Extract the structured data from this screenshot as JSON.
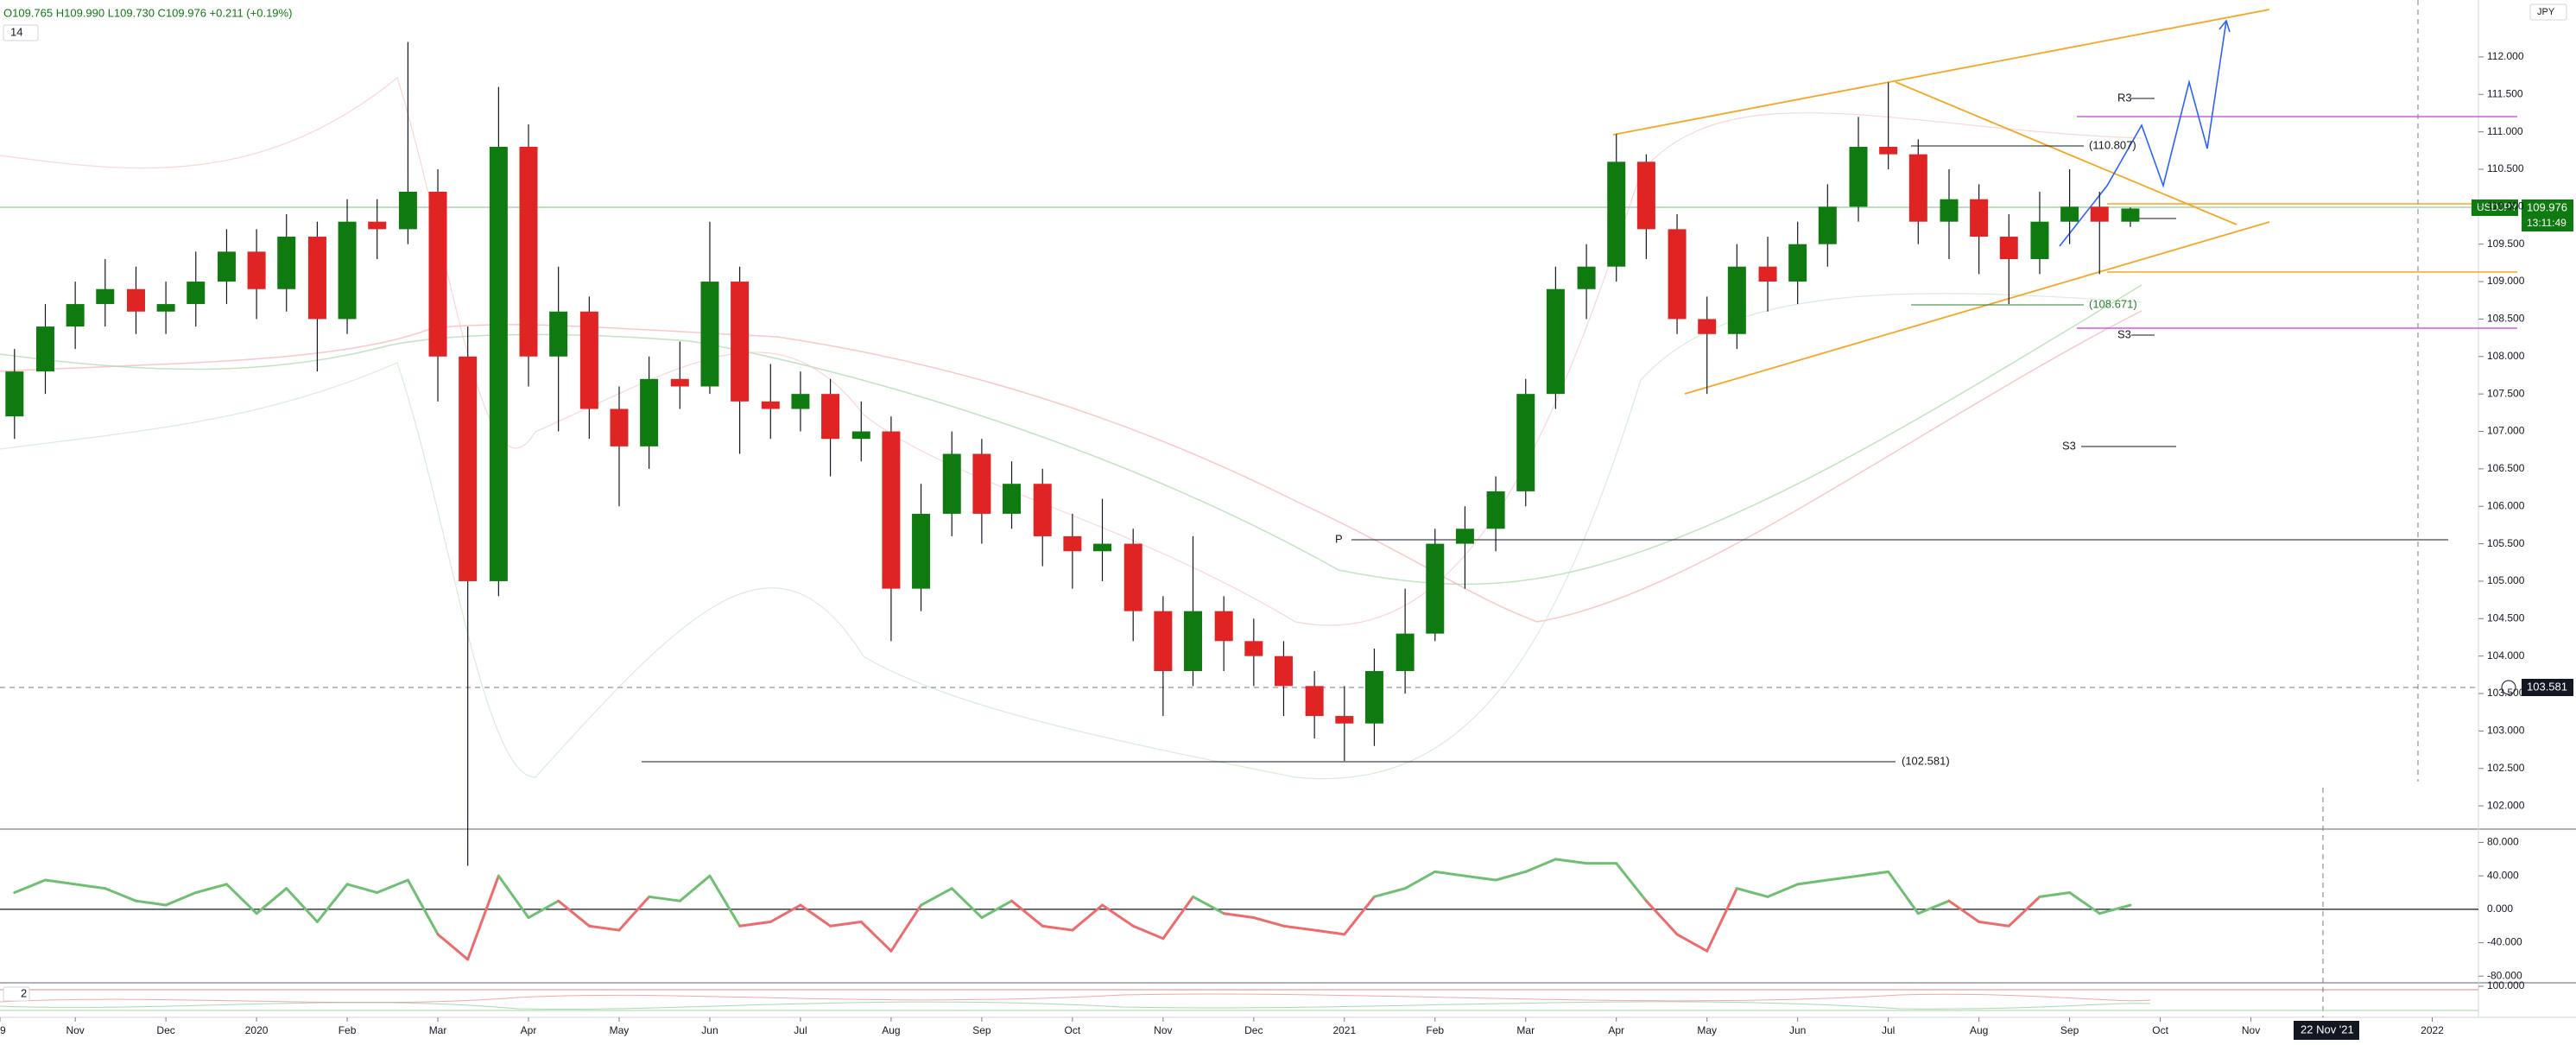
{
  "chart_data": {
    "type": "candlestick",
    "symbol": "USDJPY",
    "currency": "JPY",
    "ohlc_legend": "O109.765 H109.990 L109.730 C109.976 +0.211 (+0.19%)",
    "indicator_length": "14",
    "last_price_label": "109.976",
    "countdown": "13:11:49",
    "crosshair": {
      "price_label": "103.581",
      "date_label": "22 Nov '21"
    },
    "annotations": {
      "high_label": "(110.807)",
      "low_label": "(108.671)",
      "bottom_label": "(102.581)",
      "r3": "R3",
      "s3_a": "S3",
      "s3_b": "S3",
      "pivot": "P"
    },
    "up_color": "#0f7a0f",
    "down_color": "#e02424",
    "xlim": [
      -0.83,
      26.5
    ],
    "xticks": [
      {
        "value": -0.83,
        "label": "9"
      },
      {
        "value": 0,
        "label": "Nov"
      },
      {
        "value": 1,
        "label": "Dec"
      },
      {
        "value": 2,
        "label": "2020"
      },
      {
        "value": 3,
        "label": "Feb"
      },
      {
        "value": 4,
        "label": "Mar"
      },
      {
        "value": 5,
        "label": "Apr"
      },
      {
        "value": 6,
        "label": "May"
      },
      {
        "value": 7,
        "label": "Jun"
      },
      {
        "value": 8,
        "label": "Jul"
      },
      {
        "value": 9,
        "label": "Aug"
      },
      {
        "value": 10,
        "label": "Sep"
      },
      {
        "value": 11,
        "label": "Oct"
      },
      {
        "value": 12,
        "label": "Nov"
      },
      {
        "value": 13,
        "label": "Dec"
      },
      {
        "value": 14,
        "label": "2021"
      },
      {
        "value": 15,
        "label": "Feb"
      },
      {
        "value": 16,
        "label": "Mar"
      },
      {
        "value": 17,
        "label": "Apr"
      },
      {
        "value": 18,
        "label": "May"
      },
      {
        "value": 19,
        "label": "Jun"
      },
      {
        "value": 20,
        "label": "Jul"
      },
      {
        "value": 21,
        "label": "Aug"
      },
      {
        "value": 22,
        "label": "Sep"
      },
      {
        "value": 23,
        "label": "Oct"
      },
      {
        "value": 24,
        "label": "Nov"
      },
      {
        "value": 26,
        "label": "2022"
      }
    ],
    "ylim": [
      101.69,
      112.76
    ],
    "yticks": [
      {
        "value": 102,
        "label": "102.000"
      },
      {
        "value": 102.5,
        "label": "102.500"
      },
      {
        "value": 103,
        "label": "103.000"
      },
      {
        "value": 103.5,
        "label": "103.500"
      },
      {
        "value": 104,
        "label": "104.000"
      },
      {
        "value": 104.5,
        "label": "104.500"
      },
      {
        "value": 105,
        "label": "105.000"
      },
      {
        "value": 105.5,
        "label": "105.500"
      },
      {
        "value": 106,
        "label": "106.000"
      },
      {
        "value": 106.5,
        "label": "106.500"
      },
      {
        "value": 107,
        "label": "107.000"
      },
      {
        "value": 107.5,
        "label": "107.500"
      },
      {
        "value": 108,
        "label": "108.000"
      },
      {
        "value": 108.5,
        "label": "108.500"
      },
      {
        "value": 109,
        "label": "109.000"
      },
      {
        "value": 109.5,
        "label": "109.500"
      },
      {
        "value": 110,
        "label": "110.000"
      },
      {
        "value": 110.5,
        "label": "110.500"
      },
      {
        "value": 111,
        "label": "111.000"
      },
      {
        "value": 111.5,
        "label": "111.500"
      },
      {
        "value": 112,
        "label": "112.000"
      }
    ],
    "x": [
      -0.67,
      -0.33,
      0,
      0.33,
      0.67,
      1,
      1.33,
      1.67,
      2,
      2.33,
      2.67,
      3,
      3.33,
      3.67,
      4,
      4.33,
      4.67,
      5,
      5.33,
      5.67,
      6,
      6.33,
      6.67,
      7,
      7.33,
      7.67,
      8,
      8.33,
      8.67,
      9,
      9.33,
      9.67,
      10,
      10.33,
      10.67,
      11,
      11.33,
      11.67,
      12,
      12.33,
      12.67,
      13,
      13.33,
      13.67,
      14,
      14.33,
      14.67,
      15,
      15.33,
      15.67,
      16,
      16.33,
      16.67,
      17,
      17.33,
      17.67,
      18,
      18.33,
      18.67,
      19,
      19.33,
      19.67,
      20,
      20.33,
      20.67,
      21,
      21.33,
      21.67,
      22,
      22.33,
      22.67
    ],
    "candles": [
      [
        107.2,
        108.1,
        106.9,
        107.8
      ],
      [
        107.8,
        108.7,
        107.5,
        108.4
      ],
      [
        108.4,
        109.0,
        108.1,
        108.7
      ],
      [
        108.7,
        109.3,
        108.4,
        108.9
      ],
      [
        108.9,
        109.2,
        108.3,
        108.6
      ],
      [
        108.6,
        109.0,
        108.3,
        108.7
      ],
      [
        108.7,
        109.4,
        108.4,
        109.0
      ],
      [
        109.0,
        109.7,
        108.7,
        109.4
      ],
      [
        109.4,
        109.7,
        108.5,
        108.9
      ],
      [
        108.9,
        109.9,
        108.6,
        109.6
      ],
      [
        109.6,
        109.8,
        107.8,
        108.5
      ],
      [
        108.5,
        110.1,
        108.3,
        109.8
      ],
      [
        109.8,
        110.1,
        109.3,
        109.7
      ],
      [
        109.7,
        112.2,
        109.5,
        110.2
      ],
      [
        110.2,
        110.5,
        107.4,
        108.0
      ],
      [
        108.0,
        108.4,
        101.2,
        105.0
      ],
      [
        105.0,
        111.6,
        104.8,
        110.8
      ],
      [
        110.8,
        111.1,
        107.6,
        108.0
      ],
      [
        108.0,
        109.2,
        107.0,
        108.6
      ],
      [
        108.6,
        108.8,
        106.9,
        107.3
      ],
      [
        107.3,
        107.6,
        106.0,
        106.8
      ],
      [
        106.8,
        108.0,
        106.5,
        107.7
      ],
      [
        107.7,
        108.2,
        107.3,
        107.6
      ],
      [
        107.6,
        109.8,
        107.5,
        109.0
      ],
      [
        109.0,
        109.2,
        106.7,
        107.4
      ],
      [
        107.4,
        107.9,
        106.9,
        107.3
      ],
      [
        107.3,
        107.8,
        107.0,
        107.5
      ],
      [
        107.5,
        107.7,
        106.4,
        106.9
      ],
      [
        106.9,
        107.4,
        106.6,
        107.0
      ],
      [
        107.0,
        107.2,
        104.2,
        104.9
      ],
      [
        104.9,
        106.3,
        104.6,
        105.9
      ],
      [
        105.9,
        107.0,
        105.6,
        106.7
      ],
      [
        106.7,
        106.9,
        105.5,
        105.9
      ],
      [
        105.9,
        106.6,
        105.7,
        106.3
      ],
      [
        106.3,
        106.5,
        105.2,
        105.6
      ],
      [
        105.6,
        105.9,
        104.9,
        105.4
      ],
      [
        105.4,
        106.1,
        105.0,
        105.5
      ],
      [
        105.5,
        105.7,
        104.2,
        104.6
      ],
      [
        104.6,
        104.8,
        103.2,
        103.8
      ],
      [
        103.8,
        105.6,
        103.6,
        104.6
      ],
      [
        104.6,
        104.8,
        103.8,
        104.2
      ],
      [
        104.2,
        104.5,
        103.6,
        104.0
      ],
      [
        104.0,
        104.2,
        103.2,
        103.6
      ],
      [
        103.6,
        103.8,
        102.9,
        103.2
      ],
      [
        103.2,
        103.6,
        102.6,
        103.1
      ],
      [
        103.1,
        104.1,
        102.8,
        103.8
      ],
      [
        103.8,
        104.9,
        103.5,
        104.3
      ],
      [
        104.3,
        105.7,
        104.2,
        105.5
      ],
      [
        105.5,
        106.0,
        104.9,
        105.7
      ],
      [
        105.7,
        106.4,
        105.4,
        106.2
      ],
      [
        106.2,
        107.7,
        106.0,
        107.5
      ],
      [
        107.5,
        109.2,
        107.3,
        108.9
      ],
      [
        108.9,
        109.5,
        108.5,
        109.2
      ],
      [
        109.2,
        110.97,
        109.0,
        110.6
      ],
      [
        110.6,
        110.7,
        109.3,
        109.7
      ],
      [
        109.7,
        109.9,
        108.3,
        108.5
      ],
      [
        108.5,
        108.8,
        107.5,
        108.3
      ],
      [
        108.3,
        109.5,
        108.1,
        109.2
      ],
      [
        109.2,
        109.6,
        108.6,
        109.0
      ],
      [
        109.0,
        109.8,
        108.7,
        109.5
      ],
      [
        109.5,
        110.3,
        109.2,
        110.0
      ],
      [
        110.0,
        111.2,
        109.8,
        110.8
      ],
      [
        110.8,
        111.66,
        110.5,
        110.7
      ],
      [
        110.7,
        110.9,
        109.5,
        109.8
      ],
      [
        109.8,
        110.5,
        109.3,
        110.1
      ],
      [
        110.1,
        110.3,
        109.1,
        109.6
      ],
      [
        109.6,
        109.9,
        108.7,
        109.3
      ],
      [
        109.3,
        110.2,
        109.1,
        109.8
      ],
      [
        109.8,
        110.5,
        109.5,
        110.0
      ],
      [
        110.0,
        110.2,
        109.1,
        109.8
      ],
      [
        109.8,
        109.99,
        109.73,
        109.976
      ]
    ],
    "oscillator": {
      "up_color": "#6fbf73",
      "down_color": "#ef6b6b",
      "ylim": [
        -88,
        96
      ],
      "yticks": [
        {
          "value": 80,
          "label": "80.000"
        },
        {
          "value": 40,
          "label": "40.000"
        },
        {
          "value": 0,
          "label": "0.000"
        },
        {
          "value": -40,
          "label": "-40.000"
        },
        {
          "value": -80,
          "label": "-80.000"
        }
      ],
      "values": [
        20,
        35,
        30,
        25,
        10,
        5,
        20,
        30,
        -5,
        25,
        -15,
        30,
        20,
        35,
        -30,
        -60,
        40,
        -10,
        10,
        -20,
        -25,
        15,
        10,
        40,
        -20,
        -15,
        5,
        -20,
        -15,
        -50,
        5,
        25,
        -10,
        10,
        -20,
        -25,
        5,
        -20,
        -35,
        15,
        -5,
        -10,
        -20,
        -25,
        -30,
        15,
        25,
        45,
        40,
        35,
        45,
        60,
        55,
        55,
        10,
        -30,
        -50,
        25,
        15,
        30,
        35,
        40,
        45,
        -5,
        10,
        -15,
        -20,
        15,
        20,
        -5,
        5
      ]
    },
    "lower_pane": {
      "label": "2",
      "ytick": {
        "value": 100,
        "label": "100.000"
      }
    }
  }
}
